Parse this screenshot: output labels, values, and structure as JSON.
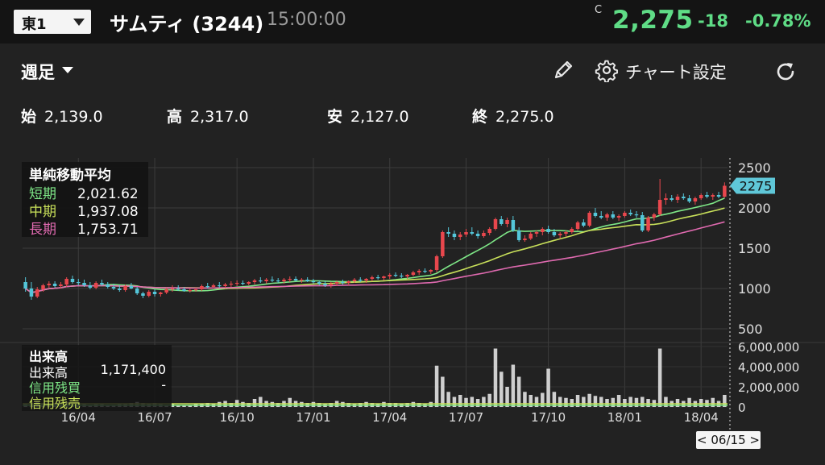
{
  "header": {
    "market_label": "東1",
    "stock_name": "サムティ (3244)",
    "time": "15:00:00",
    "close_mark": "C",
    "price": "2,275",
    "change": "-18",
    "change_pct": "-0.78%"
  },
  "toolbar": {
    "period_label": "週足",
    "settings_label": "チャート設定",
    "icons": [
      "pencil-icon",
      "gear-icon",
      "refresh-icon"
    ]
  },
  "ohlc": [
    {
      "label": "始",
      "value": "2,139.0"
    },
    {
      "label": "高",
      "value": "2,317.0"
    },
    {
      "label": "安",
      "value": "2,127.0"
    },
    {
      "label": "終",
      "value": "2,275.0"
    }
  ],
  "ma_legend": {
    "title": "単純移動平均",
    "items": [
      {
        "name": "短期",
        "value": "2,021.62",
        "color": "#7ee787"
      },
      {
        "name": "中期",
        "value": "1,937.08",
        "color": "#c8e05a"
      },
      {
        "name": "長期",
        "value": "1,753.71",
        "color": "#e06ab0"
      }
    ]
  },
  "volume_legend": {
    "title": "出来高",
    "items": [
      {
        "name": "出来高",
        "value": "1,171,400",
        "color": "#ffffff"
      },
      {
        "name": "信用残買",
        "value": "-",
        "color": "#7ee787"
      },
      {
        "name": "信用残売",
        "value": "",
        "color": "#c8e05a"
      }
    ]
  },
  "cursor_date": "< 06/15 >",
  "colors": {
    "up": "#e8474d",
    "down": "#54c6d9",
    "price_green": "#5fdc86",
    "volume": "#cfcfcf",
    "tag": "#5fc7d8"
  },
  "chart_data": {
    "type": "candlestick",
    "period": "weekly",
    "price_axis": {
      "ticks": [
        500,
        1000,
        1500,
        2000,
        2500
      ],
      "range": [
        380,
        2620
      ]
    },
    "volume_axis": {
      "ticks": [
        0,
        2000000,
        4000000,
        6000000
      ],
      "tick_labels": [
        "0",
        "2,000,000",
        "4,000,000",
        "6,000,000"
      ],
      "range": [
        0,
        6000000
      ]
    },
    "x_labels": [
      "16/04",
      "16/07",
      "16/10",
      "17/01",
      "17/04",
      "17/07",
      "17/10",
      "18/01",
      "18/04"
    ],
    "x_label_week_index": [
      9,
      22,
      36,
      49,
      62,
      75,
      89,
      102,
      115
    ],
    "last_price_tag": "2275",
    "candles_ohlc": [
      [
        1080,
        1140,
        960,
        1000
      ],
      [
        1000,
        1080,
        860,
        900
      ],
      [
        900,
        1020,
        880,
        990
      ],
      [
        990,
        1060,
        960,
        1040
      ],
      [
        1040,
        1090,
        1010,
        1060
      ],
      [
        1060,
        1090,
        1010,
        1030
      ],
      [
        1030,
        1080,
        1000,
        1050
      ],
      [
        1050,
        1140,
        1020,
        1120
      ],
      [
        1120,
        1160,
        1060,
        1080
      ],
      [
        1080,
        1120,
        1040,
        1070
      ],
      [
        1070,
        1110,
        1020,
        1040
      ],
      [
        1040,
        1080,
        990,
        1010
      ],
      [
        1010,
        1090,
        990,
        1070
      ],
      [
        1070,
        1110,
        1030,
        1050
      ],
      [
        1050,
        1080,
        1000,
        1020
      ],
      [
        1020,
        1060,
        980,
        1000
      ],
      [
        1000,
        1040,
        960,
        980
      ],
      [
        980,
        1050,
        960,
        1030
      ],
      [
        1030,
        1070,
        990,
        1000
      ],
      [
        1000,
        1020,
        920,
        940
      ],
      [
        940,
        960,
        880,
        910
      ],
      [
        910,
        980,
        890,
        960
      ],
      [
        960,
        990,
        900,
        930
      ],
      [
        930,
        960,
        900,
        950
      ],
      [
        950,
        1010,
        930,
        990
      ],
      [
        990,
        1040,
        960,
        1000
      ],
      [
        1000,
        1040,
        970,
        990
      ],
      [
        990,
        1020,
        960,
        970
      ],
      [
        970,
        1000,
        950,
        980
      ],
      [
        980,
        1010,
        960,
        990
      ],
      [
        990,
        1050,
        970,
        1030
      ],
      [
        1030,
        1070,
        1000,
        1020
      ],
      [
        1020,
        1060,
        1000,
        1040
      ],
      [
        1040,
        1080,
        1010,
        1030
      ],
      [
        1030,
        1070,
        1000,
        1050
      ],
      [
        1050,
        1090,
        1020,
        1060
      ],
      [
        1060,
        1100,
        1030,
        1070
      ],
      [
        1070,
        1100,
        1040,
        1060
      ],
      [
        1060,
        1090,
        1040,
        1080
      ],
      [
        1080,
        1120,
        1050,
        1100
      ],
      [
        1100,
        1140,
        1070,
        1090
      ],
      [
        1090,
        1130,
        1060,
        1110
      ],
      [
        1110,
        1150,
        1080,
        1100
      ],
      [
        1100,
        1130,
        1070,
        1090
      ],
      [
        1090,
        1130,
        1060,
        1110
      ],
      [
        1110,
        1150,
        1080,
        1120
      ],
      [
        1120,
        1150,
        1090,
        1100
      ],
      [
        1100,
        1130,
        1070,
        1110
      ],
      [
        1110,
        1140,
        1080,
        1090
      ],
      [
        1090,
        1120,
        1060,
        1080
      ],
      [
        1080,
        1100,
        1040,
        1060
      ],
      [
        1060,
        1090,
        1020,
        1040
      ],
      [
        1040,
        1080,
        1010,
        1060
      ],
      [
        1060,
        1100,
        1030,
        1080
      ],
      [
        1080,
        1110,
        1050,
        1070
      ],
      [
        1070,
        1100,
        1040,
        1090
      ],
      [
        1090,
        1130,
        1070,
        1110
      ],
      [
        1110,
        1140,
        1080,
        1100
      ],
      [
        1100,
        1130,
        1070,
        1120
      ],
      [
        1120,
        1160,
        1090,
        1140
      ],
      [
        1140,
        1170,
        1110,
        1130
      ],
      [
        1130,
        1160,
        1100,
        1150
      ],
      [
        1150,
        1190,
        1120,
        1170
      ],
      [
        1170,
        1200,
        1140,
        1160
      ],
      [
        1160,
        1190,
        1130,
        1150
      ],
      [
        1150,
        1180,
        1120,
        1170
      ],
      [
        1170,
        1220,
        1150,
        1200
      ],
      [
        1200,
        1240,
        1170,
        1220
      ],
      [
        1220,
        1250,
        1190,
        1210
      ],
      [
        1210,
        1240,
        1180,
        1230
      ],
      [
        1230,
        1420,
        1200,
        1400
      ],
      [
        1400,
        1720,
        1380,
        1700
      ],
      [
        1700,
        1760,
        1640,
        1680
      ],
      [
        1680,
        1720,
        1600,
        1640
      ],
      [
        1640,
        1700,
        1600,
        1670
      ],
      [
        1670,
        1740,
        1640,
        1700
      ],
      [
        1700,
        1760,
        1660,
        1680
      ],
      [
        1680,
        1720,
        1620,
        1650
      ],
      [
        1650,
        1720,
        1630,
        1690
      ],
      [
        1690,
        1760,
        1660,
        1740
      ],
      [
        1740,
        1880,
        1720,
        1860
      ],
      [
        1860,
        1900,
        1780,
        1800
      ],
      [
        1800,
        1880,
        1760,
        1850
      ],
      [
        1850,
        1900,
        1700,
        1720
      ],
      [
        1720,
        1760,
        1580,
        1600
      ],
      [
        1600,
        1660,
        1580,
        1620
      ],
      [
        1620,
        1700,
        1600,
        1680
      ],
      [
        1680,
        1720,
        1640,
        1700
      ],
      [
        1700,
        1760,
        1660,
        1740
      ],
      [
        1740,
        1780,
        1680,
        1700
      ],
      [
        1700,
        1740,
        1640,
        1660
      ],
      [
        1660,
        1700,
        1620,
        1680
      ],
      [
        1680,
        1720,
        1640,
        1700
      ],
      [
        1700,
        1760,
        1680,
        1740
      ],
      [
        1740,
        1840,
        1720,
        1820
      ],
      [
        1820,
        1860,
        1760,
        1780
      ],
      [
        1780,
        1960,
        1760,
        1940
      ],
      [
        1940,
        2000,
        1880,
        1900
      ],
      [
        1900,
        1960,
        1860,
        1880
      ],
      [
        1880,
        1940,
        1840,
        1920
      ],
      [
        1920,
        1960,
        1860,
        1880
      ],
      [
        1880,
        1920,
        1840,
        1900
      ],
      [
        1900,
        1960,
        1880,
        1940
      ],
      [
        1940,
        1980,
        1900,
        1920
      ],
      [
        1920,
        1960,
        1880,
        1910
      ],
      [
        1910,
        1950,
        1700,
        1720
      ],
      [
        1720,
        1900,
        1700,
        1880
      ],
      [
        1880,
        1940,
        1840,
        1920
      ],
      [
        1920,
        2360,
        1900,
        2100
      ],
      [
        2100,
        2180,
        2040,
        2120
      ],
      [
        2120,
        2160,
        2080,
        2100
      ],
      [
        2100,
        2170,
        2060,
        2140
      ],
      [
        2140,
        2180,
        2100,
        2120
      ],
      [
        2120,
        2160,
        2060,
        2080
      ],
      [
        2080,
        2140,
        2040,
        2120
      ],
      [
        2120,
        2180,
        2100,
        2160
      ],
      [
        2160,
        2200,
        2120,
        2140
      ],
      [
        2140,
        2180,
        2100,
        2160
      ],
      [
        2160,
        2200,
        2120,
        2140
      ],
      [
        2139,
        2317,
        2127,
        2275
      ]
    ],
    "volume_millions": [
      0.3,
      0.4,
      0.5,
      0.4,
      0.3,
      0.4,
      0.3,
      0.5,
      0.4,
      0.3,
      0.3,
      0.2,
      0.3,
      0.3,
      0.2,
      0.2,
      0.3,
      0.3,
      0.4,
      0.5,
      0.4,
      0.3,
      0.4,
      0.3,
      0.2,
      0.3,
      0.2,
      0.2,
      0.2,
      0.3,
      0.3,
      0.4,
      0.3,
      0.5,
      0.6,
      0.4,
      0.7,
      0.5,
      0.4,
      0.8,
      1.0,
      0.6,
      0.5,
      0.4,
      0.6,
      0.9,
      0.6,
      0.5,
      0.4,
      0.5,
      0.4,
      0.3,
      0.4,
      0.6,
      0.5,
      0.4,
      0.3,
      0.4,
      0.5,
      0.4,
      0.3,
      0.5,
      0.4,
      0.4,
      0.3,
      0.4,
      0.5,
      0.4,
      0.3,
      0.5,
      4.1,
      3.0,
      1.5,
      1.0,
      1.2,
      0.9,
      1.0,
      0.8,
      1.0,
      1.3,
      5.8,
      3.5,
      2.0,
      4.2,
      3.0,
      1.5,
      1.2,
      1.0,
      1.4,
      3.8,
      1.5,
      1.0,
      0.9,
      0.8,
      1.2,
      1.0,
      1.3,
      1.1,
      1.0,
      0.8,
      0.9,
      1.2,
      0.8,
      1.0,
      0.9,
      1.0,
      0.8,
      0.7,
      5.8,
      1.0,
      0.6,
      0.8,
      0.6,
      0.9,
      0.6,
      0.8,
      0.7,
      0.9,
      0.6,
      1.2
    ],
    "moving_averages": [
      {
        "name": "短期",
        "last": 2021.62,
        "color": "#7ee787"
      },
      {
        "name": "中期",
        "last": 1937.08,
        "color": "#c8e05a"
      },
      {
        "name": "長期",
        "last": 1753.71,
        "color": "#e06ab0"
      }
    ],
    "ma_periods_assumed": [
      13,
      26,
      52
    ]
  }
}
